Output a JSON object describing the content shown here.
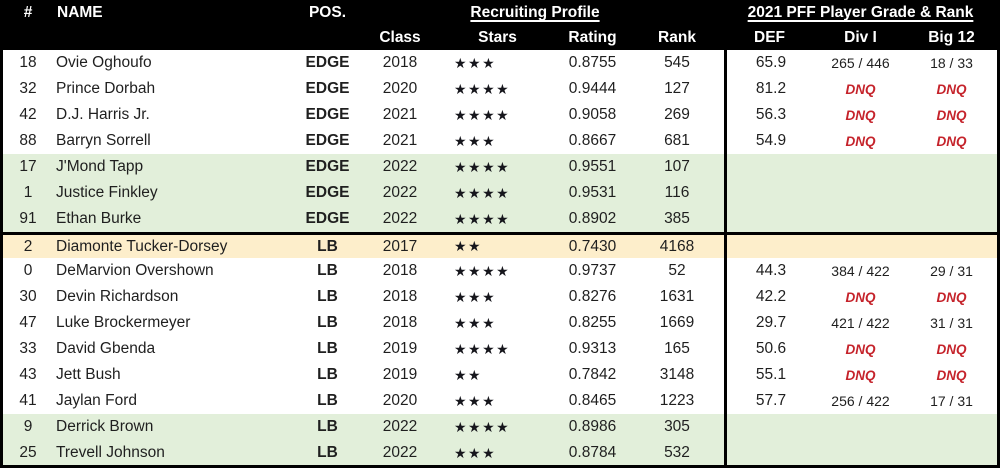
{
  "colors": {
    "header_bg": "#000000",
    "header_text": "#ffffff",
    "row_green": "#e2efda",
    "row_yellow": "#fdeecb",
    "dnq_red": "#c5232b",
    "border_black": "#000000"
  },
  "header": {
    "num": "#",
    "name": "NAME",
    "pos": "POS.",
    "recruiting_group": "Recruiting Profile",
    "pff_group": "2021 PFF Player Grade & Rank",
    "class": "Class",
    "stars": "Stars",
    "rating": "Rating",
    "rank": "Rank",
    "def": "DEF",
    "div1": "Div I",
    "big12": "Big 12"
  },
  "chart_data": {
    "type": "table",
    "title": "2021 PFF Player Grade & Rank",
    "columns": [
      "#",
      "NAME",
      "POS.",
      "Class",
      "Stars",
      "Rating",
      "Rank",
      "DEF",
      "Div I",
      "Big 12"
    ],
    "column_groups": [
      {
        "label": "Recruiting Profile",
        "columns": [
          "Class",
          "Stars",
          "Rating",
          "Rank"
        ]
      },
      {
        "label": "2021 PFF Player Grade & Rank",
        "columns": [
          "DEF",
          "Div I",
          "Big 12"
        ]
      }
    ],
    "star_glyph": "★",
    "rows": [
      {
        "num": "18",
        "name": "Ovie Oghoufo",
        "pos": "EDGE",
        "class": "2018",
        "stars": 3,
        "rating": "0.8755",
        "rank": "545",
        "def": "65.9",
        "div1": "265 / 446",
        "big12": "18 / 33",
        "bg": "white"
      },
      {
        "num": "32",
        "name": "Prince Dorbah",
        "pos": "EDGE",
        "class": "2020",
        "stars": 4,
        "rating": "0.9444",
        "rank": "127",
        "def": "81.2",
        "div1": "DNQ",
        "big12": "DNQ",
        "bg": "white"
      },
      {
        "num": "42",
        "name": "D.J. Harris Jr.",
        "pos": "EDGE",
        "class": "2021",
        "stars": 4,
        "rating": "0.9058",
        "rank": "269",
        "def": "56.3",
        "div1": "DNQ",
        "big12": "DNQ",
        "bg": "white"
      },
      {
        "num": "88",
        "name": "Barryn Sorrell",
        "pos": "EDGE",
        "class": "2021",
        "stars": 3,
        "rating": "0.8667",
        "rank": "681",
        "def": "54.9",
        "div1": "DNQ",
        "big12": "DNQ",
        "bg": "white"
      },
      {
        "num": "17",
        "name": "J'Mond Tapp",
        "pos": "EDGE",
        "class": "2022",
        "stars": 4,
        "rating": "0.9551",
        "rank": "107",
        "def": "",
        "div1": "",
        "big12": "",
        "bg": "green"
      },
      {
        "num": "1",
        "name": "Justice Finkley",
        "pos": "EDGE",
        "class": "2022",
        "stars": 4,
        "rating": "0.9531",
        "rank": "116",
        "def": "",
        "div1": "",
        "big12": "",
        "bg": "green"
      },
      {
        "num": "91",
        "name": "Ethan Burke",
        "pos": "EDGE",
        "class": "2022",
        "stars": 4,
        "rating": "0.8902",
        "rank": "385",
        "def": "",
        "div1": "",
        "big12": "",
        "bg": "green"
      },
      {
        "num": "2",
        "name": "Diamonte Tucker-Dorsey",
        "pos": "LB",
        "class": "2017",
        "stars": 2,
        "rating": "0.7430",
        "rank": "4168",
        "def": "",
        "div1": "",
        "big12": "",
        "bg": "yellow",
        "thick_top": true
      },
      {
        "num": "0",
        "name": "DeMarvion Overshown",
        "pos": "LB",
        "class": "2018",
        "stars": 4,
        "rating": "0.9737",
        "rank": "52",
        "def": "44.3",
        "div1": "384 / 422",
        "big12": "29 / 31",
        "bg": "white"
      },
      {
        "num": "30",
        "name": "Devin Richardson",
        "pos": "LB",
        "class": "2018",
        "stars": 3,
        "rating": "0.8276",
        "rank": "1631",
        "def": "42.2",
        "div1": "DNQ",
        "big12": "DNQ",
        "bg": "white"
      },
      {
        "num": "47",
        "name": "Luke Brockermeyer",
        "pos": "LB",
        "class": "2018",
        "stars": 3,
        "rating": "0.8255",
        "rank": "1669",
        "def": "29.7",
        "div1": "421 / 422",
        "big12": "31 / 31",
        "bg": "white"
      },
      {
        "num": "33",
        "name": "David Gbenda",
        "pos": "LB",
        "class": "2019",
        "stars": 4,
        "rating": "0.9313",
        "rank": "165",
        "def": "50.6",
        "div1": "DNQ",
        "big12": "DNQ",
        "bg": "white"
      },
      {
        "num": "43",
        "name": "Jett Bush",
        "pos": "LB",
        "class": "2019",
        "stars": 2,
        "rating": "0.7842",
        "rank": "3148",
        "def": "55.1",
        "div1": "DNQ",
        "big12": "DNQ",
        "bg": "white"
      },
      {
        "num": "41",
        "name": "Jaylan Ford",
        "pos": "LB",
        "class": "2020",
        "stars": 3,
        "rating": "0.8465",
        "rank": "1223",
        "def": "57.7",
        "div1": "256 / 422",
        "big12": "17 / 31",
        "bg": "white"
      },
      {
        "num": "9",
        "name": "Derrick Brown",
        "pos": "LB",
        "class": "2022",
        "stars": 4,
        "rating": "0.8986",
        "rank": "305",
        "def": "",
        "div1": "",
        "big12": "",
        "bg": "green"
      },
      {
        "num": "25",
        "name": "Trevell Johnson",
        "pos": "LB",
        "class": "2022",
        "stars": 3,
        "rating": "0.8784",
        "rank": "532",
        "def": "",
        "div1": "",
        "big12": "",
        "bg": "green"
      }
    ]
  }
}
